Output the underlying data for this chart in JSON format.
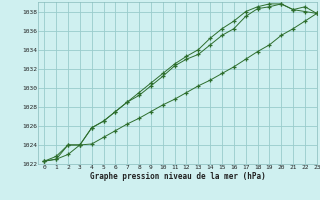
{
  "title": "Graphe pression niveau de la mer (hPa)",
  "background_color": "#cff0f0",
  "grid_color": "#99cccc",
  "line_color": "#2d6e2d",
  "marker": "+",
  "xlim": [
    -0.5,
    23
  ],
  "ylim": [
    1022,
    1039
  ],
  "yticks": [
    1022,
    1024,
    1026,
    1028,
    1030,
    1032,
    1034,
    1036,
    1038
  ],
  "xticks": [
    0,
    1,
    2,
    3,
    4,
    5,
    6,
    7,
    8,
    9,
    10,
    11,
    12,
    13,
    14,
    15,
    16,
    17,
    18,
    19,
    20,
    21,
    22,
    23
  ],
  "series": [
    [
      1022.3,
      1022.5,
      1023.0,
      1024.0,
      1024.1,
      1024.8,
      1025.5,
      1026.2,
      1026.8,
      1027.5,
      1028.2,
      1028.8,
      1029.5,
      1030.2,
      1030.8,
      1031.5,
      1032.2,
      1033.0,
      1033.8,
      1034.5,
      1035.5,
      1036.2,
      1037.0,
      1037.8
    ],
    [
      1022.3,
      1022.8,
      1024.0,
      1024.0,
      1025.8,
      1026.5,
      1027.5,
      1028.5,
      1029.2,
      1030.2,
      1031.2,
      1032.3,
      1033.0,
      1033.5,
      1034.5,
      1035.5,
      1036.2,
      1037.5,
      1038.3,
      1038.5,
      1038.8,
      1038.2,
      1038.0,
      1037.8
    ],
    [
      1022.3,
      1022.5,
      1024.0,
      1024.0,
      1025.8,
      1026.5,
      1027.5,
      1028.5,
      1029.5,
      1030.5,
      1031.5,
      1032.5,
      1033.3,
      1034.0,
      1035.2,
      1036.2,
      1037.0,
      1038.0,
      1038.5,
      1038.8,
      1038.8,
      1038.2,
      1038.5,
      1037.8
    ]
  ]
}
